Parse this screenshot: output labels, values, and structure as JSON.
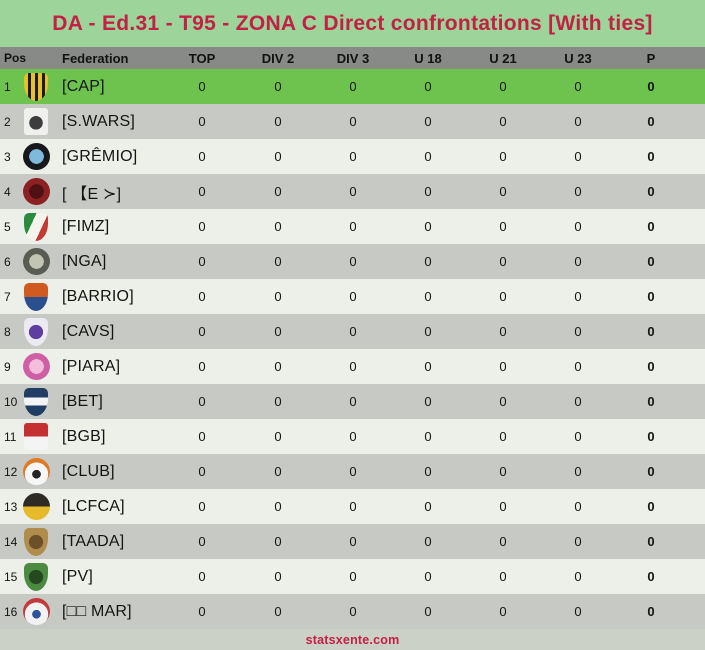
{
  "title": "DA - Ed.31 - T95 - ZONA C Direct confrontations [With ties]",
  "footer": "statsxente.com",
  "colors": {
    "title_band": "#9cd49a",
    "title_text": "#c32045",
    "header_bg": "#878a87",
    "row_highlight": "#6ec34e",
    "row_gray": "#c7cac4",
    "row_light": "#edefe9",
    "footer_bg": "#ccd1c7",
    "footer_text": "#c32045",
    "text": "#141414"
  },
  "table": {
    "columns": [
      "Pos",
      "Federation",
      "TOP",
      "DIV 2",
      "DIV 3",
      "U 18",
      "U 21",
      "U 23",
      "P"
    ],
    "rows": [
      {
        "pos": "1",
        "name": "[CAP]",
        "values": [
          "0",
          "0",
          "0",
          "0",
          "0",
          "0"
        ],
        "p": "0",
        "highlight": true,
        "badge": {
          "name": "cap-crest-icon",
          "shape": "shield",
          "pattern": "stripes",
          "colors": [
            "#e7c02c",
            "#1c1c1c"
          ]
        }
      },
      {
        "pos": "2",
        "name": "[S.WARS]",
        "values": [
          "0",
          "0",
          "0",
          "0",
          "0",
          "0"
        ],
        "p": "0",
        "highlight": false,
        "badge": {
          "name": "swars-crest-icon",
          "shape": "square",
          "pattern": "blob",
          "colors": [
            "#f0f0ee",
            "#3d3d3d"
          ]
        }
      },
      {
        "pos": "3",
        "name": "[GRÊMIO]",
        "values": [
          "0",
          "0",
          "0",
          "0",
          "0",
          "0"
        ],
        "p": "0",
        "highlight": false,
        "badge": {
          "name": "gremio-crest-icon",
          "shape": "circle",
          "pattern": "ring",
          "colors": [
            "#17171c",
            "#7fb9dc"
          ]
        }
      },
      {
        "pos": "4",
        "name": "[ 【E ≻]",
        "values": [
          "0",
          "0",
          "0",
          "0",
          "0",
          "0"
        ],
        "p": "0",
        "highlight": false,
        "badge": {
          "name": "e-crest-icon",
          "shape": "circle",
          "pattern": "ring",
          "colors": [
            "#8c2022",
            "#4f1113"
          ]
        }
      },
      {
        "pos": "5",
        "name": "[FIMZ]",
        "values": [
          "0",
          "0",
          "0",
          "0",
          "0",
          "0"
        ],
        "p": "0",
        "highlight": false,
        "badge": {
          "name": "fimz-crest-icon",
          "shape": "shield",
          "pattern": "diag",
          "colors": [
            "#2a8a3e",
            "#f4f4ec",
            "#c23a33"
          ]
        }
      },
      {
        "pos": "6",
        "name": "[NGA]",
        "values": [
          "0",
          "0",
          "0",
          "0",
          "0",
          "0"
        ],
        "p": "0",
        "highlight": false,
        "badge": {
          "name": "nga-crest-icon",
          "shape": "circle",
          "pattern": "ring",
          "colors": [
            "#585c52",
            "#c2c4b4"
          ]
        }
      },
      {
        "pos": "7",
        "name": "[BARRIO]",
        "values": [
          "0",
          "0",
          "0",
          "0",
          "0",
          "0"
        ],
        "p": "0",
        "highlight": false,
        "badge": {
          "name": "barrio-crest-icon",
          "shape": "shield",
          "pattern": "halves",
          "colors": [
            "#d05a20",
            "#2a4f8e"
          ]
        }
      },
      {
        "pos": "8",
        "name": "[CAVS]",
        "values": [
          "0",
          "0",
          "0",
          "0",
          "0",
          "0"
        ],
        "p": "0",
        "highlight": false,
        "badge": {
          "name": "cavs-crest-icon",
          "shape": "shield",
          "pattern": "ring",
          "colors": [
            "#ecebf3",
            "#5e3f9d"
          ]
        }
      },
      {
        "pos": "9",
        "name": "[PIARA]",
        "values": [
          "0",
          "0",
          "0",
          "0",
          "0",
          "0"
        ],
        "p": "0",
        "highlight": false,
        "badge": {
          "name": "piara-crest-icon",
          "shape": "circle",
          "pattern": "ring",
          "colors": [
            "#ce5fa5",
            "#f3bedb"
          ]
        }
      },
      {
        "pos": "10",
        "name": "[BET]",
        "values": [
          "0",
          "0",
          "0",
          "0",
          "0",
          "0"
        ],
        "p": "0",
        "highlight": false,
        "badge": {
          "name": "bet-crest-icon",
          "shape": "shield",
          "pattern": "band",
          "colors": [
            "#213d63",
            "#f2f4f6"
          ]
        }
      },
      {
        "pos": "11",
        "name": "[BGB]",
        "values": [
          "0",
          "0",
          "0",
          "0",
          "0",
          "0"
        ],
        "p": "0",
        "highlight": false,
        "badge": {
          "name": "bgb-crest-icon",
          "shape": "square",
          "pattern": "halves",
          "colors": [
            "#c53030",
            "#f4f4f4"
          ]
        }
      },
      {
        "pos": "12",
        "name": "[CLUB]",
        "values": [
          "0",
          "0",
          "0",
          "0",
          "0",
          "0"
        ],
        "p": "0",
        "highlight": false,
        "badge": {
          "name": "club-crest-icon",
          "shape": "circle",
          "pattern": "ball",
          "colors": [
            "#df7a25",
            "#f6f6f6",
            "#242424"
          ]
        }
      },
      {
        "pos": "13",
        "name": "[LCFCA]",
        "values": [
          "0",
          "0",
          "0",
          "0",
          "0",
          "0"
        ],
        "p": "0",
        "highlight": false,
        "badge": {
          "name": "lcfca-crest-icon",
          "shape": "circle",
          "pattern": "halves",
          "colors": [
            "#2e2a24",
            "#e5ba2b"
          ]
        }
      },
      {
        "pos": "14",
        "name": "[TAADA]",
        "values": [
          "0",
          "0",
          "0",
          "0",
          "0",
          "0"
        ],
        "p": "0",
        "highlight": false,
        "badge": {
          "name": "taada-crest-icon",
          "shape": "shield",
          "pattern": "ring",
          "colors": [
            "#b08c4d",
            "#6e4f2c"
          ]
        }
      },
      {
        "pos": "15",
        "name": "[PV]",
        "values": [
          "0",
          "0",
          "0",
          "0",
          "0",
          "0"
        ],
        "p": "0",
        "highlight": false,
        "badge": {
          "name": "pv-crest-icon",
          "shape": "shield",
          "pattern": "ring",
          "colors": [
            "#4c8a42",
            "#24491f"
          ]
        }
      },
      {
        "pos": "16",
        "name": "[□□ MAR]",
        "values": [
          "0",
          "0",
          "0",
          "0",
          "0",
          "0"
        ],
        "p": "0",
        "highlight": false,
        "badge": {
          "name": "mar-crest-icon",
          "shape": "circle",
          "pattern": "ball",
          "colors": [
            "#c23b3b",
            "#f2f2f2",
            "#2f549b"
          ]
        }
      }
    ]
  }
}
